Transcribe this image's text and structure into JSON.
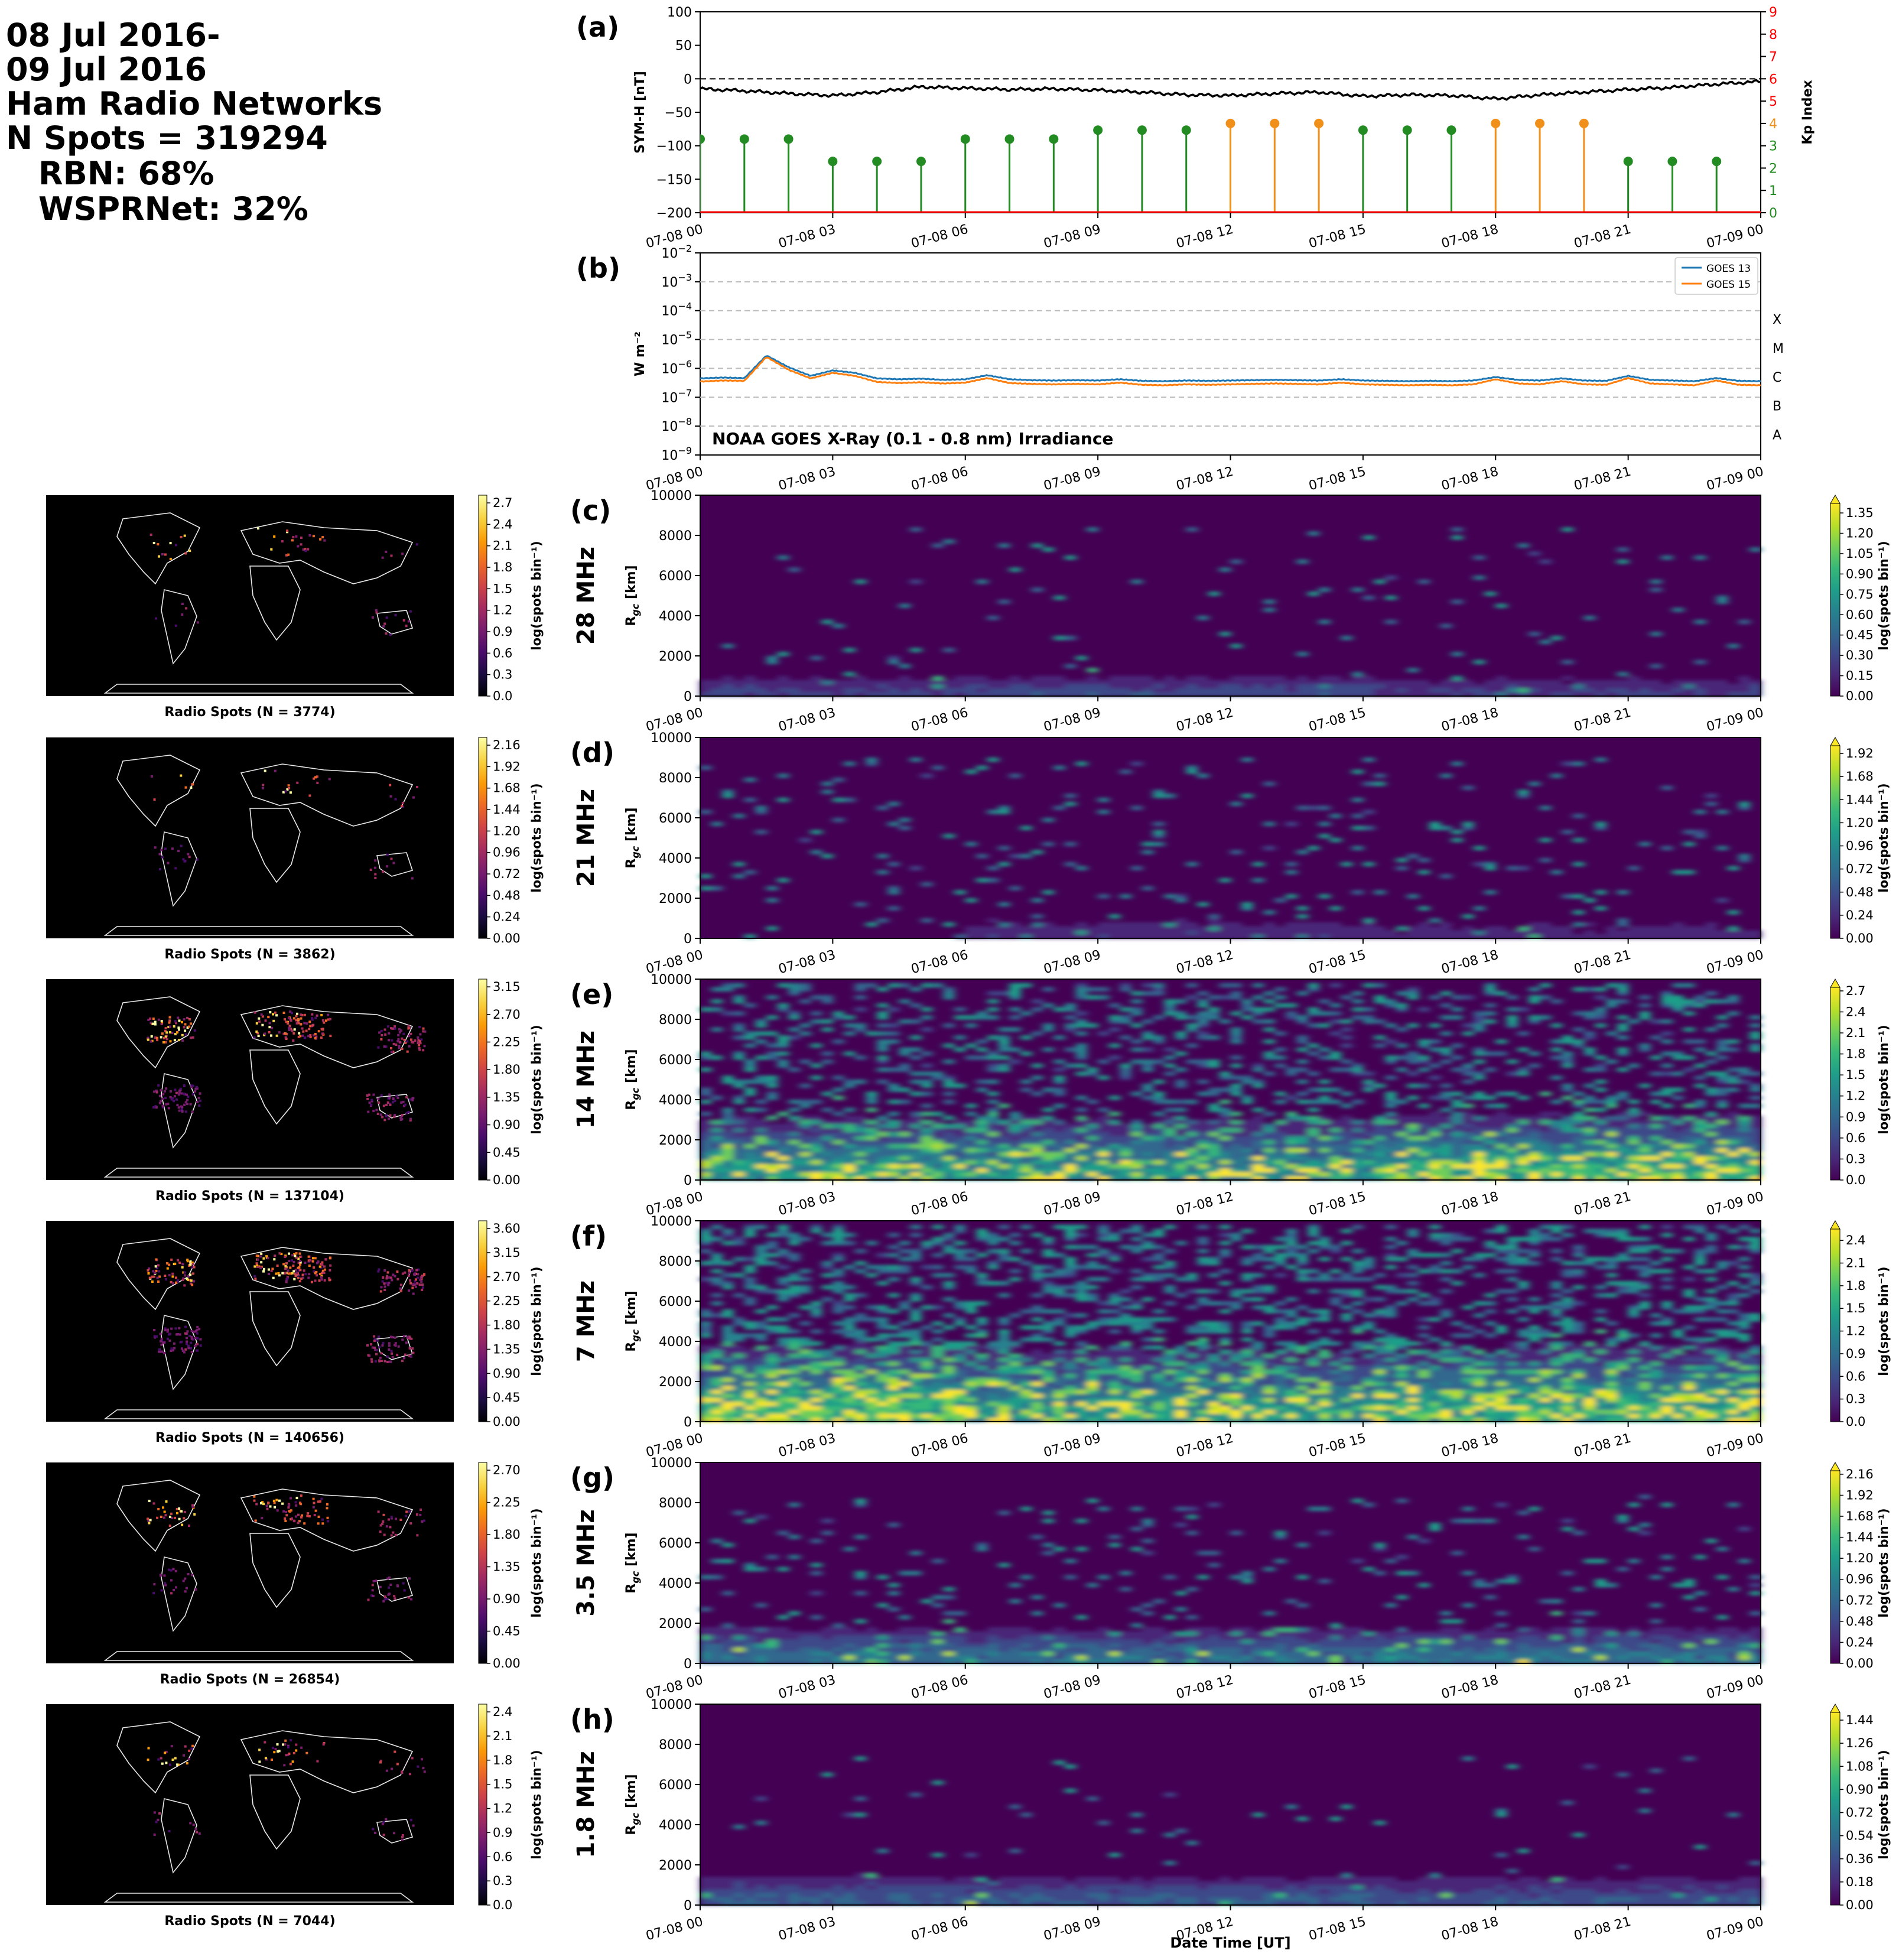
{
  "header": {
    "lines": [
      "08 Jul 2016-",
      "09 Jul 2016",
      "Ham Radio Networks",
      "N Spots = 319294",
      "RBN: 68%",
      "WSPRNet: 32%"
    ]
  },
  "time_ticks": [
    "07-08 00",
    "07-08 03",
    "07-08 06",
    "07-08 09",
    "07-08 12",
    "07-08 15",
    "07-08 18",
    "07-08 21",
    "07-09 00"
  ],
  "colors": {
    "symh": "#000000",
    "kp_low": "#228b22",
    "kp_mid": "#f0901a",
    "kp_axis": "#ff0000",
    "goes13": "#1f77b4",
    "goes15": "#ff7f0e",
    "viridis": [
      "#440154",
      "#482878",
      "#3e4989",
      "#31688e",
      "#26828e",
      "#1f9e89",
      "#35b779",
      "#6ece58",
      "#b5de2b",
      "#fde725"
    ],
    "inferno": [
      "#000004",
      "#1b0c41",
      "#4a0c6b",
      "#781c6d",
      "#a52c60",
      "#cf4446",
      "#ed6925",
      "#fb9b06",
      "#f7d13d",
      "#fcffa4"
    ]
  },
  "chart_data": [
    {
      "type": "line",
      "panel_label": "(a)",
      "xlabel": "",
      "ylabel": "SYM-H [nT]",
      "ylim": [
        -200,
        100
      ],
      "yticks": [
        "100",
        "50",
        "0",
        "−50",
        "−100",
        "−150",
        "−200"
      ],
      "reference_line": 0,
      "series": [
        {
          "hours": [
            0,
            1,
            2,
            3,
            4,
            5,
            6,
            7,
            8,
            9,
            10,
            11,
            12,
            13,
            14,
            15,
            16,
            17,
            18,
            19,
            20,
            21,
            22,
            23,
            24
          ],
          "values": [
            -15,
            -18,
            -22,
            -25,
            -20,
            -12,
            -14,
            -16,
            -15,
            -17,
            -20,
            -24,
            -25,
            -22,
            -20,
            -26,
            -24,
            -25,
            -30,
            -24,
            -20,
            -16,
            -13,
            -8,
            -4
          ]
        }
      ],
      "secondary_axis": {
        "ylabel": "Kp Index",
        "ylim": [
          0,
          9
        ],
        "ticks": [
          "0",
          "1",
          "2",
          "3",
          "4",
          "5",
          "6",
          "7",
          "8",
          "9"
        ],
        "kp": {
          "hours": [
            0,
            1,
            2,
            3,
            4,
            5,
            6,
            7,
            8,
            9,
            10,
            11,
            12,
            13,
            14,
            15,
            16,
            17,
            18,
            19,
            20,
            21,
            22,
            23
          ],
          "values": [
            3.3,
            3.3,
            3.3,
            2.3,
            2.3,
            2.3,
            3.3,
            3.3,
            3.3,
            3.7,
            3.7,
            3.7,
            4,
            4,
            4,
            3.7,
            3.7,
            3.7,
            4,
            4,
            4,
            2.3,
            2.3,
            2.3
          ]
        }
      }
    },
    {
      "type": "line",
      "panel_label": "(b)",
      "xlabel": "",
      "ylabel": "W m⁻²",
      "yscale": "log",
      "ylim": [
        1e-09,
        0.01
      ],
      "ytick_exponents": [
        -9,
        -8,
        -7,
        -6,
        -5,
        -4,
        -3,
        -2
      ],
      "flare_classes": [
        "X",
        "M",
        "C",
        "B",
        "A"
      ],
      "annotation": "NOAA GOES X-Ray (0.1 - 0.8 nm) Irradiance",
      "x_hours": [
        0,
        0.5,
        1,
        1.5,
        2,
        2.5,
        3,
        3.5,
        4,
        4.5,
        5,
        5.5,
        6,
        6.5,
        7,
        7.5,
        8,
        8.5,
        9,
        9.5,
        10,
        10.5,
        11,
        11.5,
        12,
        12.5,
        13,
        13.5,
        14,
        14.5,
        15,
        15.5,
        16,
        16.5,
        17,
        17.5,
        18,
        18.5,
        19,
        19.5,
        20,
        20.5,
        21,
        21.5,
        22,
        22.5,
        23,
        23.5,
        24
      ],
      "series": [
        {
          "name": "GOES 13",
          "values": [
            4.5e-07,
            4.8e-07,
            4.6e-07,
            2.8e-06,
            1.1e-06,
            5.5e-07,
            8.5e-07,
            7e-07,
            4.5e-07,
            4.2e-07,
            4.4e-07,
            4e-07,
            4.2e-07,
            5.8e-07,
            4.2e-07,
            3.9e-07,
            3.8e-07,
            3.9e-07,
            3.8e-07,
            4.2e-07,
            3.7e-07,
            3.6e-07,
            3.8e-07,
            3.7e-07,
            3.8e-07,
            3.9e-07,
            4e-07,
            3.9e-07,
            3.8e-07,
            4.2e-07,
            3.8e-07,
            3.7e-07,
            3.6e-07,
            3.7e-07,
            3.6e-07,
            3.8e-07,
            5e-07,
            4e-07,
            3.8e-07,
            4.5e-07,
            3.8e-07,
            3.7e-07,
            5.5e-07,
            4e-07,
            3.8e-07,
            3.6e-07,
            4.6e-07,
            3.7e-07,
            3.6e-07
          ]
        },
        {
          "name": "GOES 15",
          "values": [
            3.5e-07,
            3.8e-07,
            3.7e-07,
            2.5e-06,
            9e-07,
            4.5e-07,
            7e-07,
            5.5e-07,
            3.4e-07,
            3.1e-07,
            3.3e-07,
            3e-07,
            3.2e-07,
            4.6e-07,
            3.1e-07,
            2.9e-07,
            2.8e-07,
            2.9e-07,
            2.8e-07,
            3.2e-07,
            2.7e-07,
            2.6e-07,
            2.8e-07,
            2.7e-07,
            2.8e-07,
            2.9e-07,
            3e-07,
            2.9e-07,
            2.8e-07,
            3.2e-07,
            2.8e-07,
            2.7e-07,
            2.6e-07,
            2.7e-07,
            2.6e-07,
            2.8e-07,
            4.2e-07,
            3e-07,
            2.8e-07,
            3.6e-07,
            2.8e-07,
            2.7e-07,
            4.6e-07,
            3e-07,
            2.8e-07,
            2.6e-07,
            3.8e-07,
            2.7e-07,
            2.6e-07
          ]
        }
      ]
    },
    {
      "type": "heatmap",
      "panel_label": "(c)",
      "band": "28 MHz",
      "ylabel": "R_gc [km]",
      "xlabel": "",
      "ylim": [
        0,
        10000
      ],
      "yticks": [
        "0",
        "2000",
        "4000",
        "6000",
        "8000",
        "10000"
      ],
      "colorbar": {
        "label": "log(spots bin⁻¹)",
        "ticks": [
          "0.00",
          "0.15",
          "0.30",
          "0.45",
          "0.60",
          "0.75",
          "0.90",
          "1.05",
          "1.20",
          "1.35"
        ],
        "max": 1.42
      },
      "map": {
        "caption": "Radio Spots (N = 3774)",
        "colorbar_ticks": [
          "0.0",
          "0.3",
          "0.6",
          "0.9",
          "1.2",
          "1.5",
          "1.8",
          "2.1",
          "2.4",
          "2.7"
        ]
      }
    },
    {
      "type": "heatmap",
      "panel_label": "(d)",
      "band": "21 MHz",
      "ylabel": "R_gc [km]",
      "xlabel": "",
      "ylim": [
        0,
        10000
      ],
      "yticks": [
        "0",
        "2000",
        "4000",
        "6000",
        "8000",
        "10000"
      ],
      "colorbar": {
        "label": "log(spots bin⁻¹)",
        "ticks": [
          "0.00",
          "0.24",
          "0.48",
          "0.72",
          "0.96",
          "1.20",
          "1.44",
          "1.68",
          "1.92"
        ],
        "max": 2.0
      },
      "map": {
        "caption": "Radio Spots (N = 3862)",
        "colorbar_ticks": [
          "0.00",
          "0.24",
          "0.48",
          "0.72",
          "0.96",
          "1.20",
          "1.44",
          "1.68",
          "1.92",
          "2.16"
        ]
      }
    },
    {
      "type": "heatmap",
      "panel_label": "(e)",
      "band": "14 MHz",
      "ylabel": "R_gc [km]",
      "xlabel": "",
      "ylim": [
        0,
        10000
      ],
      "yticks": [
        "0",
        "2000",
        "4000",
        "6000",
        "8000",
        "10000"
      ],
      "colorbar": {
        "label": "log(spots bin⁻¹)",
        "ticks": [
          "0.0",
          "0.3",
          "0.6",
          "0.9",
          "1.2",
          "1.5",
          "1.8",
          "2.1",
          "2.4",
          "2.7"
        ],
        "max": 2.75
      },
      "map": {
        "caption": "Radio Spots (N = 137104)",
        "colorbar_ticks": [
          "0.00",
          "0.45",
          "0.90",
          "1.35",
          "1.80",
          "2.25",
          "2.70",
          "3.15"
        ]
      }
    },
    {
      "type": "heatmap",
      "panel_label": "(f)",
      "band": "7 MHz",
      "ylabel": "R_gc [km]",
      "xlabel": "",
      "ylim": [
        0,
        10000
      ],
      "yticks": [
        "0",
        "2000",
        "4000",
        "6000",
        "8000",
        "10000"
      ],
      "colorbar": {
        "label": "log(spots bin⁻¹)",
        "ticks": [
          "0.0",
          "0.3",
          "0.6",
          "0.9",
          "1.2",
          "1.5",
          "1.8",
          "2.1",
          "2.4"
        ],
        "max": 2.55
      },
      "map": {
        "caption": "Radio Spots (N = 140656)",
        "colorbar_ticks": [
          "0.00",
          "0.45",
          "0.90",
          "1.35",
          "1.80",
          "2.25",
          "2.70",
          "3.15",
          "3.60"
        ]
      }
    },
    {
      "type": "heatmap",
      "panel_label": "(g)",
      "band": "3.5 MHz",
      "ylabel": "R_gc [km]",
      "xlabel": "",
      "ylim": [
        0,
        10000
      ],
      "yticks": [
        "0",
        "2000",
        "4000",
        "6000",
        "8000",
        "10000"
      ],
      "colorbar": {
        "label": "log(spots bin⁻¹)",
        "ticks": [
          "0.00",
          "0.24",
          "0.48",
          "0.72",
          "0.96",
          "1.20",
          "1.44",
          "1.68",
          "1.92",
          "2.16"
        ],
        "max": 2.2
      },
      "map": {
        "caption": "Radio Spots (N = 26854)",
        "colorbar_ticks": [
          "0.00",
          "0.45",
          "0.90",
          "1.35",
          "1.80",
          "2.25",
          "2.70"
        ]
      }
    },
    {
      "type": "heatmap",
      "panel_label": "(h)",
      "band": "1.8 MHz",
      "ylabel": "R_gc [km]",
      "xlabel": "Date Time [UT]",
      "ylim": [
        0,
        10000
      ],
      "yticks": [
        "0",
        "2000",
        "4000",
        "6000",
        "8000",
        "10000"
      ],
      "colorbar": {
        "label": "log(spots bin⁻¹)",
        "ticks": [
          "0.00",
          "0.18",
          "0.36",
          "0.54",
          "0.72",
          "0.90",
          "1.08",
          "1.26",
          "1.44"
        ],
        "max": 1.5
      },
      "map": {
        "caption": "Radio Spots (N = 7044)",
        "colorbar_ticks": [
          "0.0",
          "0.3",
          "0.6",
          "0.9",
          "1.2",
          "1.5",
          "1.8",
          "2.1",
          "2.4"
        ]
      }
    }
  ]
}
